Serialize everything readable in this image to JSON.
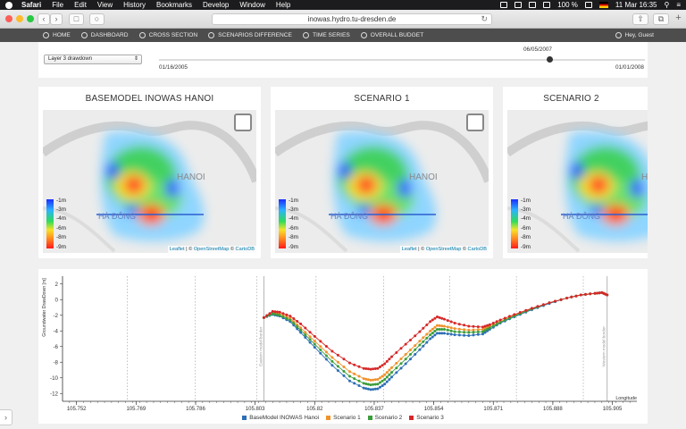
{
  "menubar": {
    "app": "Safari",
    "items": [
      "File",
      "Edit",
      "View",
      "History",
      "Bookmarks",
      "Develop",
      "Window",
      "Help"
    ],
    "battery": "100 %",
    "datetime": "11 Mar  16:35"
  },
  "browser": {
    "url": "inowas.hydro.tu-dresden.de"
  },
  "nav": {
    "items": [
      "HOME",
      "DASHBOARD",
      "CROSS SECTION",
      "SCENARIOS DIFFERENCE",
      "TIME SERIES",
      "OVERALL BUDGET"
    ],
    "user": "Hey, Guest"
  },
  "controls": {
    "layer_select": "Layer 3 drawdown",
    "slider_current": "06/05/2007",
    "slider_start": "01/16/2005",
    "slider_end": "01/01/2008",
    "slider_fraction": 0.804
  },
  "maps": [
    {
      "title": "BASEMODEL INOWAS HANOI"
    },
    {
      "title": "SCENARIO 1"
    },
    {
      "title": "SCENARIO 2"
    }
  ],
  "map_common": {
    "city_label": "HANOI",
    "district_label": "HÀ ĐÔNG",
    "legend": [
      "-1m",
      "-3m",
      "-4m",
      "-6m",
      "-8m",
      "-9m"
    ],
    "attribution_leaflet": "Leaflet",
    "attribution_osm": "OpenStreetMap",
    "attribution_carto": "CartoDB"
  },
  "chart_data": {
    "type": "line",
    "ylabel": "Groundwater DrawDown [m]",
    "xlabel": "Longitude",
    "ylim": [
      -13,
      3
    ],
    "xlim": [
      105.748,
      105.912
    ],
    "yticks": [
      2,
      0,
      -2,
      -4,
      -6,
      -8,
      -10,
      -12
    ],
    "xticks": [
      "105.752",
      "105.769",
      "105.786",
      "105.803",
      "105.82",
      "105.837",
      "105.854",
      "105.871",
      "105.888",
      "105.905"
    ],
    "vlines": [
      105.7665,
      105.7859,
      105.8035,
      105.8204,
      105.8397,
      105.8586,
      105.8776,
      105.8967
    ],
    "boundaries": [
      {
        "x": 105.8055,
        "label": "Eastern model border"
      },
      {
        "x": 105.9035,
        "label": "Western model border"
      }
    ],
    "series": [
      {
        "name": "BaseModel INOWAS Hanoi",
        "color": "#2c6fb5",
        "x": [
          105.8055,
          105.808,
          105.81,
          105.813,
          105.816,
          105.82,
          105.825,
          105.83,
          105.834,
          105.836,
          105.838,
          105.84,
          105.842,
          105.846,
          105.85,
          105.853,
          105.855,
          105.857,
          105.86,
          105.864,
          105.868,
          105.87,
          105.873,
          105.877,
          105.882,
          105.887,
          105.892,
          105.896,
          105.9,
          105.902,
          105.9035
        ],
        "y": [
          -2.3,
          -1.9,
          -2.1,
          -2.8,
          -4.2,
          -6.1,
          -8.4,
          -10.4,
          -11.3,
          -11.5,
          -11.4,
          -10.8,
          -9.9,
          -8.2,
          -6.4,
          -5.0,
          -4.3,
          -4.3,
          -4.5,
          -4.6,
          -4.4,
          -3.8,
          -3.0,
          -2.2,
          -1.3,
          -0.5,
          0.2,
          0.6,
          0.8,
          0.9,
          0.6
        ]
      },
      {
        "name": "Scenario 1",
        "color": "#f0922b",
        "x": [
          105.8055,
          105.808,
          105.81,
          105.813,
          105.816,
          105.82,
          105.825,
          105.83,
          105.834,
          105.836,
          105.838,
          105.84,
          105.842,
          105.846,
          105.85,
          105.853,
          105.855,
          105.857,
          105.86,
          105.864,
          105.868,
          105.87,
          105.873,
          105.877,
          105.882,
          105.887,
          105.892,
          105.896,
          105.9,
          105.902,
          105.9035
        ],
        "y": [
          -2.3,
          -1.7,
          -1.8,
          -2.4,
          -3.6,
          -5.3,
          -7.4,
          -9.2,
          -10.1,
          -10.3,
          -10.2,
          -9.6,
          -8.7,
          -7.0,
          -5.3,
          -4.0,
          -3.3,
          -3.4,
          -3.7,
          -3.9,
          -3.8,
          -3.4,
          -2.8,
          -2.0,
          -1.2,
          -0.4,
          0.2,
          0.6,
          0.8,
          0.9,
          0.6
        ]
      },
      {
        "name": "Scenario 2",
        "color": "#3a9d3a",
        "x": [
          105.8055,
          105.808,
          105.81,
          105.813,
          105.816,
          105.82,
          105.825,
          105.83,
          105.834,
          105.836,
          105.838,
          105.84,
          105.842,
          105.846,
          105.85,
          105.853,
          105.855,
          105.857,
          105.86,
          105.864,
          105.868,
          105.87,
          105.873,
          105.877,
          105.882,
          105.887,
          105.892,
          105.896,
          105.9,
          105.902,
          105.9035
        ],
        "y": [
          -2.3,
          -1.8,
          -2.0,
          -2.6,
          -3.9,
          -5.7,
          -7.9,
          -9.8,
          -10.7,
          -10.9,
          -10.8,
          -10.2,
          -9.3,
          -7.6,
          -5.8,
          -4.5,
          -3.8,
          -3.8,
          -4.1,
          -4.2,
          -4.1,
          -3.6,
          -2.9,
          -2.1,
          -1.2,
          -0.4,
          0.2,
          0.6,
          0.8,
          0.9,
          0.6
        ]
      },
      {
        "name": "Scenario 3",
        "color": "#d62728",
        "x": [
          105.8055,
          105.808,
          105.81,
          105.813,
          105.816,
          105.82,
          105.825,
          105.83,
          105.834,
          105.836,
          105.838,
          105.84,
          105.842,
          105.846,
          105.85,
          105.853,
          105.855,
          105.857,
          105.86,
          105.864,
          105.868,
          105.87,
          105.873,
          105.877,
          105.882,
          105.887,
          105.892,
          105.896,
          105.9,
          105.902,
          105.9035
        ],
        "y": [
          -2.3,
          -1.5,
          -1.6,
          -2.1,
          -3.1,
          -4.7,
          -6.6,
          -8.1,
          -8.8,
          -8.9,
          -8.8,
          -8.2,
          -7.3,
          -5.7,
          -4.1,
          -2.8,
          -2.2,
          -2.5,
          -3.0,
          -3.4,
          -3.5,
          -3.2,
          -2.6,
          -1.9,
          -1.1,
          -0.4,
          0.2,
          0.6,
          0.8,
          0.9,
          0.6
        ]
      }
    ]
  }
}
